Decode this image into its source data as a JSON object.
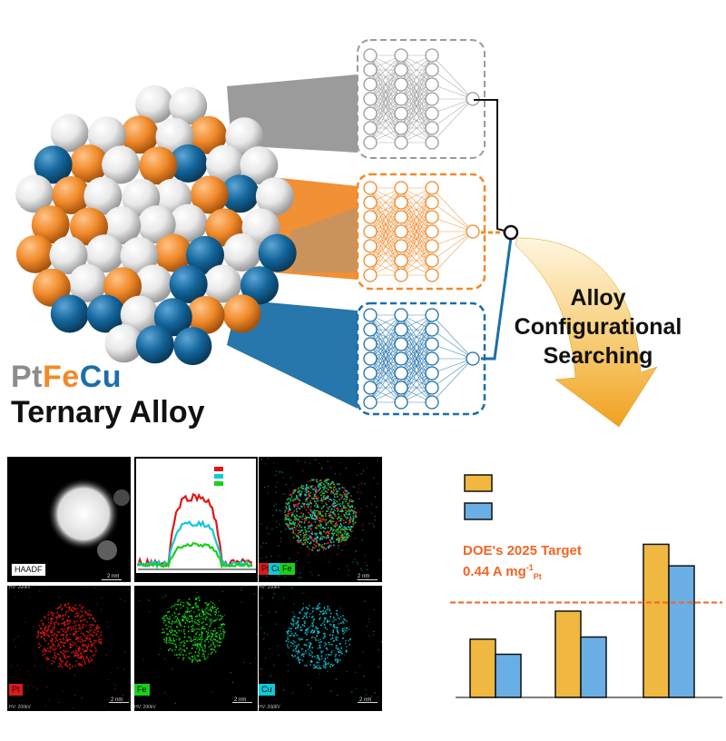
{
  "title": {
    "element_pt": "Pt",
    "element_fe": "Fe",
    "element_cu": "Cu",
    "line2": "Ternary Alloy"
  },
  "search_label": [
    "Alloy",
    "Configurational",
    "Searching"
  ],
  "colors": {
    "pt": "#e6e6e6",
    "fe": "#f08a2a",
    "cu": "#14669c",
    "network_gray": "#9a9a9a",
    "network_orange": "#f08a2a",
    "network_blue": "#1b6fa8",
    "doe_line": "#f26522",
    "bar_orange": "#f0b840",
    "bar_blue": "#6aaee6"
  },
  "networks": [
    {
      "name": "gray-network",
      "style": "gray"
    },
    {
      "name": "orange-network",
      "style": "orange"
    },
    {
      "name": "blue-network",
      "style": "blue"
    }
  ],
  "microscopy": {
    "panels": [
      {
        "label": "HAADF",
        "scale": "2 nm",
        "meta": "HV: 200kV"
      },
      {
        "label": "",
        "scale": "",
        "meta": ""
      },
      {
        "label_pt": "Pt",
        "label_cu": "Cu",
        "label_fe": "Fe",
        "scale": "2 nm",
        "meta": "HV: 200kV"
      },
      {
        "label": "Pt",
        "scale": "2 nm",
        "meta": "HV: 200kV"
      },
      {
        "label": "Fe",
        "scale": "2 nm",
        "meta": "HV: 200kV"
      },
      {
        "label": "Cu",
        "scale": "2 nm",
        "meta": "HV: 200kV"
      }
    ]
  },
  "doe": {
    "line1": "DOE's 2025 Target",
    "line2_main": "0.44 A mg",
    "line2_sup": "-1",
    "line2_sub": "Pt"
  },
  "chart_data": {
    "type": "bar",
    "categories": [
      "",
      "",
      ""
    ],
    "series": [
      {
        "values": [
          0.27,
          0.4,
          0.71
        ]
      },
      {
        "values": [
          0.2,
          0.28,
          0.61
        ]
      }
    ],
    "reference_line": 0.44,
    "ylim": [
      0,
      0.8
    ],
    "title": "",
    "xlabel": "",
    "ylabel": ""
  }
}
